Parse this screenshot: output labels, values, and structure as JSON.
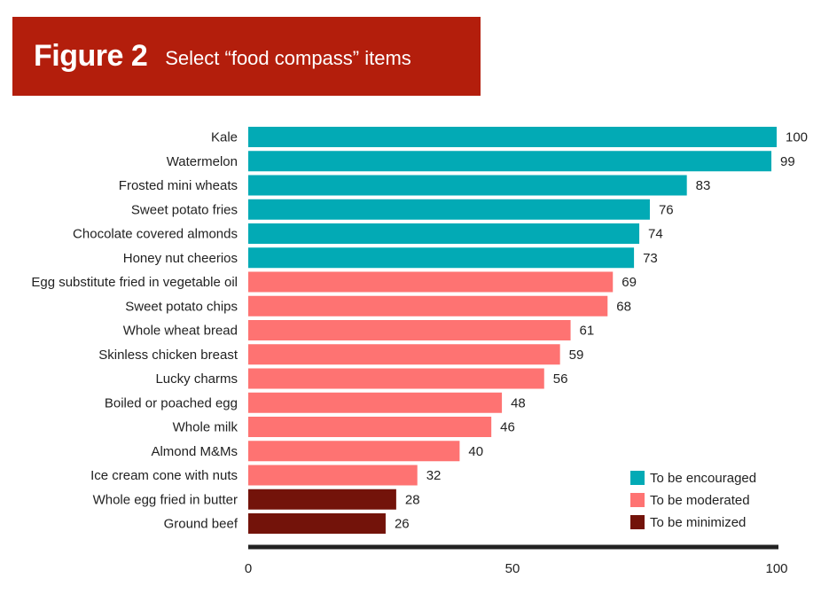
{
  "header": {
    "figure_label": "Figure 2",
    "subtitle": "Select “food compass” items"
  },
  "colors": {
    "banner": "#b31e0c",
    "encouraged": "#02aab5",
    "moderated": "#fe7372",
    "minimized": "#73130a",
    "axis": "#222222"
  },
  "chart_data": {
    "type": "bar",
    "orientation": "horizontal",
    "title": "Figure 2 Select “food compass” items",
    "xlabel": "",
    "ylabel": "",
    "xlim": [
      0,
      100
    ],
    "x_ticks": [
      0,
      50,
      100
    ],
    "grid": false,
    "legend_position": "bottom-right",
    "legend": [
      {
        "key": "encouraged",
        "label": "To be encouraged"
      },
      {
        "key": "moderated",
        "label": "To be moderated"
      },
      {
        "key": "minimized",
        "label": "To be minimized"
      }
    ],
    "categories": [
      "Kale",
      "Watermelon",
      "Frosted mini wheats",
      "Sweet potato fries",
      "Chocolate covered almonds",
      "Honey nut cheerios",
      "Egg substitute fried in vegetable oil",
      "Sweet potato chips",
      "Whole wheat bread",
      "Skinless chicken breast",
      "Lucky charms",
      "Boiled or poached egg",
      "Whole milk",
      "Almond M&Ms",
      "Ice cream cone with nuts",
      "Whole egg fried in butter",
      "Ground beef"
    ],
    "values": [
      100,
      99,
      83,
      76,
      74,
      73,
      69,
      68,
      61,
      59,
      56,
      48,
      46,
      40,
      32,
      28,
      26
    ],
    "groups": [
      "encouraged",
      "encouraged",
      "encouraged",
      "encouraged",
      "encouraged",
      "encouraged",
      "moderated",
      "moderated",
      "moderated",
      "moderated",
      "moderated",
      "moderated",
      "moderated",
      "moderated",
      "moderated",
      "minimized",
      "minimized"
    ]
  }
}
